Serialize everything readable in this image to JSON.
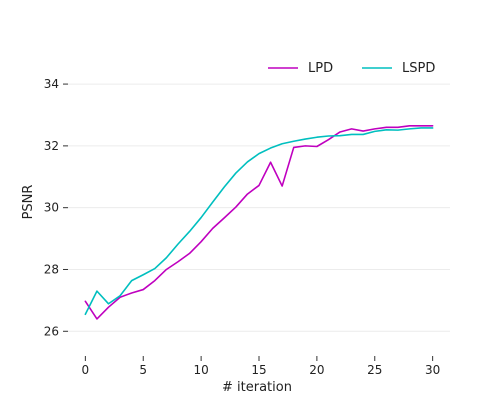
{
  "chart_data": {
    "type": "line",
    "title": "",
    "xlabel": "# iteration",
    "ylabel": "PSNR",
    "xlim": [
      -1.5,
      31.5
    ],
    "ylim": [
      25.2,
      35.2
    ],
    "xticks": [
      0,
      5,
      10,
      15,
      20,
      25,
      30
    ],
    "yticks": [
      26,
      28,
      30,
      32,
      34
    ],
    "grid": "horizontal",
    "legend": "top-right",
    "x": [
      0,
      1,
      2,
      3,
      4,
      5,
      6,
      7,
      8,
      9,
      10,
      11,
      12,
      13,
      14,
      15,
      16,
      17,
      18,
      19,
      20,
      21,
      22,
      23,
      24,
      25,
      26,
      27,
      28,
      29,
      30
    ],
    "series": [
      {
        "name": "LPD",
        "color": "#bf00bf",
        "values": [
          26.97,
          26.4,
          26.78,
          27.1,
          27.24,
          27.35,
          27.64,
          28.0,
          28.25,
          28.52,
          28.9,
          29.33,
          29.67,
          30.02,
          30.44,
          30.72,
          31.47,
          30.7,
          31.95,
          32.0,
          31.98,
          32.2,
          32.45,
          32.55,
          32.48,
          32.55,
          32.6,
          32.6,
          32.65,
          32.65,
          32.65
        ]
      },
      {
        "name": "LSPD",
        "color": "#00bfbf",
        "values": [
          26.55,
          27.3,
          26.89,
          27.15,
          27.64,
          27.83,
          28.03,
          28.38,
          28.82,
          29.23,
          29.68,
          30.18,
          30.67,
          31.12,
          31.48,
          31.75,
          31.93,
          32.07,
          32.15,
          32.22,
          32.28,
          32.32,
          32.33,
          32.37,
          32.37,
          32.47,
          32.52,
          32.51,
          32.55,
          32.58,
          32.58
        ]
      }
    ]
  }
}
